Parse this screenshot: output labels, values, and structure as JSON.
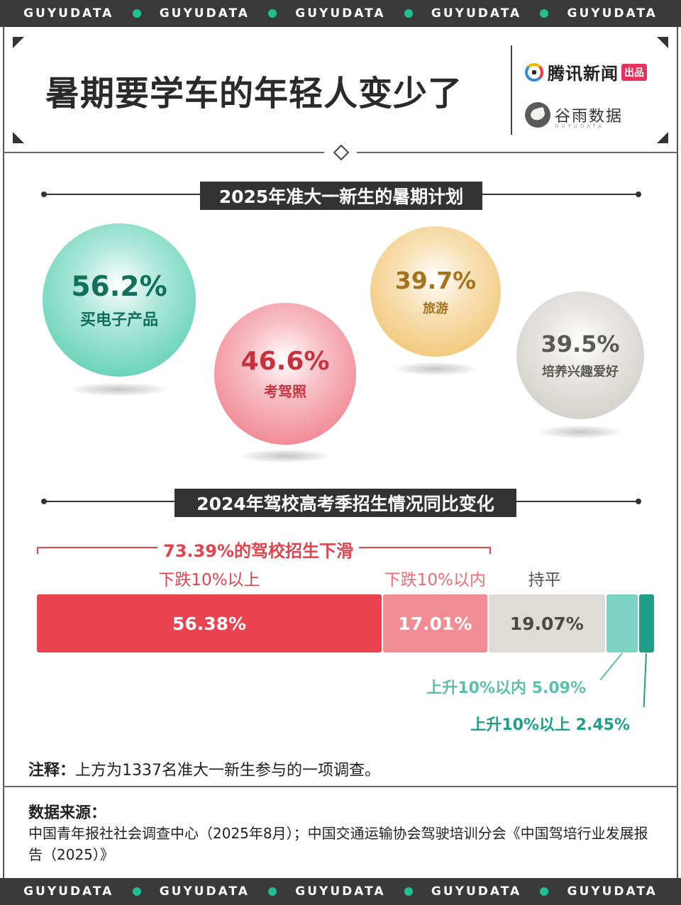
{
  "brand_band": {
    "items": [
      "GUYUDATA",
      "GUYUDATA",
      "GUYUDATA",
      "GUYUDATA",
      "GUYUDATA"
    ],
    "dot_color": "#1fbf93"
  },
  "title": "暑期要学车的年轻人变少了",
  "brands": {
    "tencent": "腾讯新闻",
    "tencent_tag": "出品",
    "guyu": "谷雨数据",
    "guyu_sub": "GUYUDATA"
  },
  "section1": {
    "title": "2025年准大一新生的暑期计划"
  },
  "section2": {
    "title": "2024年驾校高考季招生情况同比变化"
  },
  "chart_data": [
    {
      "type": "bubble",
      "title": "2025年准大一新生的暑期计划",
      "unit": "%",
      "categories": [
        "买电子产品",
        "考驾照",
        "旅游",
        "培养兴趣爱好"
      ],
      "values": [
        56.2,
        46.6,
        39.7,
        39.5
      ],
      "value_labels": [
        "56.2%",
        "46.6%",
        "39.7%",
        "39.5%"
      ],
      "colors": [
        "#46c9a8",
        "#ee6f7b",
        "#f0bd5e",
        "#c9c7c0"
      ],
      "text_colors": [
        "#12705a",
        "#c8323d",
        "#a5731d",
        "#5a5a55"
      ]
    },
    {
      "type": "bar",
      "orientation": "horizontal-stacked",
      "title": "2024年驾校高考季招生情况同比变化",
      "unit": "%",
      "categories": [
        "下跌10%以上",
        "下跌10%以内",
        "持平",
        "上升10%以内",
        "上升10%以上"
      ],
      "values": [
        56.38,
        17.01,
        19.07,
        5.09,
        2.45
      ],
      "value_labels": [
        "56.38%",
        "17.01%",
        "19.07%",
        "",
        ""
      ],
      "colors": [
        "#e8434f",
        "#f08e93",
        "#dedcd6",
        "#7dd3c4",
        "#1e9f8a"
      ],
      "annotation": "73.39%的驾校招生下滑",
      "side_labels": [
        "上升10%以内 5.09%",
        "上升10%以上 2.45%"
      ]
    }
  ],
  "note": {
    "label": "注释：",
    "text": "上方为1337名准大一新生参与的一项调查。"
  },
  "source": {
    "title": "数据来源：",
    "text": "中国青年报社社会调查中心（2025年8月）；中国交通运输协会驾驶培训分会《中国驾培行业发展报告（2025）》"
  }
}
